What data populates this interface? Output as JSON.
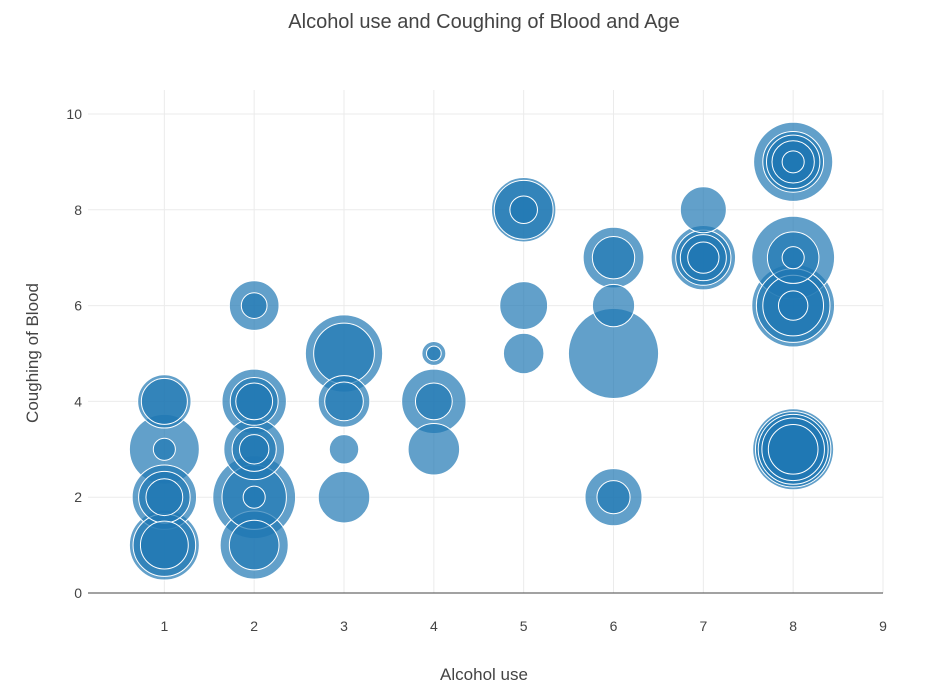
{
  "chart_data": {
    "type": "scatter",
    "title": "Alcohol use and Coughing of Blood and Age",
    "xlabel": "Alcohol use",
    "ylabel": "Coughing of Blood",
    "xlim": [
      0.15,
      9
    ],
    "ylim": [
      0,
      10.5
    ],
    "x_ticks": [
      1,
      2,
      3,
      4,
      5,
      6,
      7,
      8,
      9
    ],
    "y_ticks": [
      0,
      2,
      4,
      6,
      8,
      10
    ],
    "grid": true,
    "legend": "none",
    "marker_color": "#1f77b4",
    "marker_edge_color": "#ffffff",
    "size_variable": "Age",
    "series": [
      {
        "points": [
          {
            "x": 1,
            "y": 1,
            "age": 38
          },
          {
            "x": 1,
            "y": 1,
            "age": 34
          },
          {
            "x": 1,
            "y": 1,
            "age": 26
          },
          {
            "x": 1,
            "y": 2,
            "age": 35
          },
          {
            "x": 1,
            "y": 2,
            "age": 28
          },
          {
            "x": 1,
            "y": 2,
            "age": 20
          },
          {
            "x": 1,
            "y": 3,
            "age": 38
          },
          {
            "x": 1,
            "y": 3,
            "age": 12
          },
          {
            "x": 1,
            "y": 4,
            "age": 29
          },
          {
            "x": 1,
            "y": 4,
            "age": 25
          },
          {
            "x": 2,
            "y": 1,
            "age": 37
          },
          {
            "x": 2,
            "y": 1,
            "age": 27
          },
          {
            "x": 2,
            "y": 2,
            "age": 45
          },
          {
            "x": 2,
            "y": 2,
            "age": 35
          },
          {
            "x": 2,
            "y": 2,
            "age": 12
          },
          {
            "x": 2,
            "y": 3,
            "age": 33
          },
          {
            "x": 2,
            "y": 3,
            "age": 24
          },
          {
            "x": 2,
            "y": 3,
            "age": 16
          },
          {
            "x": 2,
            "y": 4,
            "age": 35
          },
          {
            "x": 2,
            "y": 4,
            "age": 26
          },
          {
            "x": 2,
            "y": 4,
            "age": 20
          },
          {
            "x": 2,
            "y": 6,
            "age": 27
          },
          {
            "x": 2,
            "y": 6,
            "age": 14
          },
          {
            "x": 3,
            "y": 2,
            "age": 28
          },
          {
            "x": 3,
            "y": 3,
            "age": 16
          },
          {
            "x": 3,
            "y": 4,
            "age": 28
          },
          {
            "x": 3,
            "y": 4,
            "age": 21
          },
          {
            "x": 3,
            "y": 5,
            "age": 42
          },
          {
            "x": 3,
            "y": 5,
            "age": 33
          },
          {
            "x": 4,
            "y": 3,
            "age": 28
          },
          {
            "x": 4,
            "y": 4,
            "age": 35
          },
          {
            "x": 4,
            "y": 4,
            "age": 20
          },
          {
            "x": 4,
            "y": 5,
            "age": 13
          },
          {
            "x": 4,
            "y": 5,
            "age": 8
          },
          {
            "x": 5,
            "y": 5,
            "age": 22
          },
          {
            "x": 5,
            "y": 6,
            "age": 26
          },
          {
            "x": 5,
            "y": 8,
            "age": 35
          },
          {
            "x": 5,
            "y": 8,
            "age": 32
          },
          {
            "x": 5,
            "y": 8,
            "age": 15
          },
          {
            "x": 6,
            "y": 2,
            "age": 31
          },
          {
            "x": 6,
            "y": 2,
            "age": 18
          },
          {
            "x": 6,
            "y": 5,
            "age": 49
          },
          {
            "x": 6,
            "y": 6,
            "age": 23
          },
          {
            "x": 6,
            "y": 7,
            "age": 33
          },
          {
            "x": 6,
            "y": 7,
            "age": 23
          },
          {
            "x": 7,
            "y": 7,
            "age": 35
          },
          {
            "x": 7,
            "y": 7,
            "age": 30
          },
          {
            "x": 7,
            "y": 7,
            "age": 25
          },
          {
            "x": 7,
            "y": 7,
            "age": 17
          },
          {
            "x": 7,
            "y": 8,
            "age": 25
          },
          {
            "x": 8,
            "y": 3,
            "age": 44
          },
          {
            "x": 8,
            "y": 3,
            "age": 41
          },
          {
            "x": 8,
            "y": 3,
            "age": 38
          },
          {
            "x": 8,
            "y": 3,
            "age": 34
          },
          {
            "x": 8,
            "y": 3,
            "age": 27
          },
          {
            "x": 8,
            "y": 6,
            "age": 45
          },
          {
            "x": 8,
            "y": 6,
            "age": 40
          },
          {
            "x": 8,
            "y": 6,
            "age": 33
          },
          {
            "x": 8,
            "y": 6,
            "age": 16
          },
          {
            "x": 8,
            "y": 7,
            "age": 45
          },
          {
            "x": 8,
            "y": 7,
            "age": 28
          },
          {
            "x": 8,
            "y": 7,
            "age": 12
          },
          {
            "x": 8,
            "y": 9,
            "age": 43
          },
          {
            "x": 8,
            "y": 9,
            "age": 33
          },
          {
            "x": 8,
            "y": 9,
            "age": 29
          },
          {
            "x": 8,
            "y": 9,
            "age": 23
          },
          {
            "x": 8,
            "y": 9,
            "age": 12
          }
        ]
      }
    ]
  }
}
